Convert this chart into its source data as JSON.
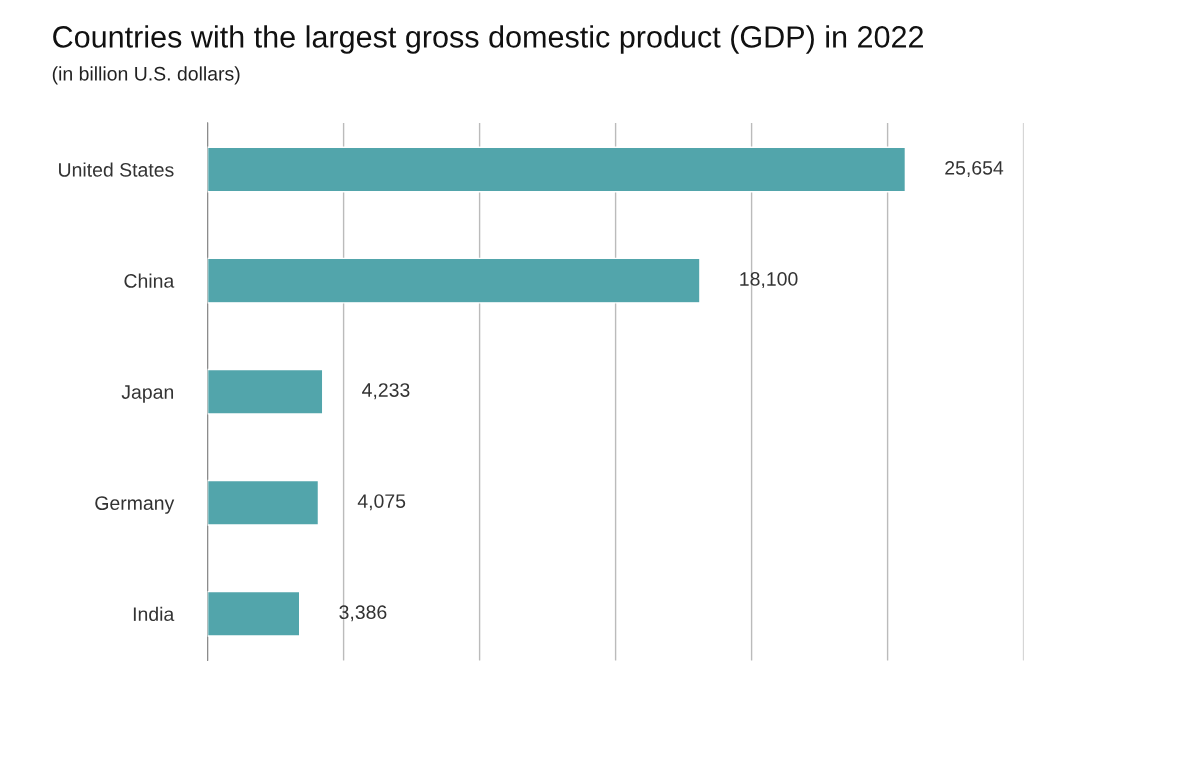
{
  "chart_data": {
    "type": "bar",
    "orientation": "horizontal",
    "title": "Countries with the largest gross domestic product (GDP) in 2022",
    "subtitle": "(in billion U.S. dollars)",
    "categories": [
      "United States",
      "China",
      "Japan",
      "Germany",
      "India"
    ],
    "values": [
      25654,
      18100,
      4233,
      4075,
      3386
    ],
    "color": "#52a5ab",
    "value_labels": [
      "25,654",
      "18,100",
      "4,233",
      "4,075",
      "3,386"
    ],
    "xlim": [
      0,
      30000
    ],
    "xticks": [
      {
        "value": 0,
        "label": null
      },
      {
        "value": 5000,
        "label": null
      },
      {
        "value": 10000,
        "label": null
      },
      {
        "value": 15000,
        "label": null
      },
      {
        "value": 20000,
        "label": null
      },
      {
        "value": 25000,
        "label": null
      },
      {
        "value": 30000,
        "label": null
      }
    ],
    "grid": "x",
    "tick_labels": "y"
  }
}
